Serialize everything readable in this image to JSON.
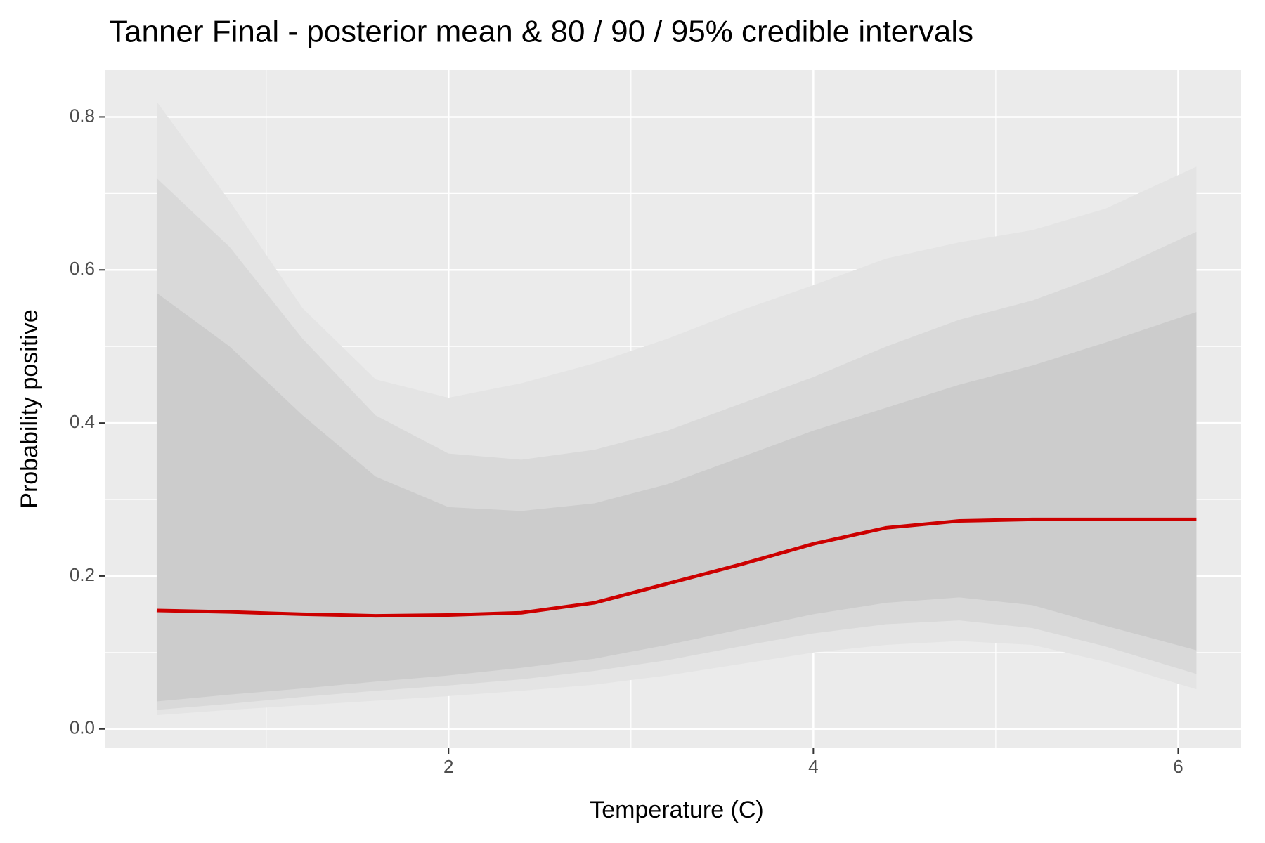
{
  "chart_data": {
    "type": "line",
    "title": "Tanner Final - posterior mean & 80 / 90 / 95% credible intervals",
    "x_label": "Temperature (C)",
    "y_label": "Probability positive",
    "x": [
      0.4,
      0.8,
      1.2,
      1.6,
      2.0,
      2.4,
      2.8,
      3.2,
      3.6,
      4.0,
      4.4,
      4.8,
      5.2,
      5.6,
      6.1
    ],
    "bands": [
      {
        "color": "#e4e4e4",
        "lower": [
          0.018,
          0.025,
          0.031,
          0.037,
          0.043,
          0.05,
          0.058,
          0.07,
          0.085,
          0.1,
          0.11,
          0.115,
          0.11,
          0.088,
          0.052
        ],
        "upper": [
          0.82,
          0.69,
          0.55,
          0.457,
          0.433,
          0.452,
          0.478,
          0.51,
          0.547,
          0.58,
          0.615,
          0.636,
          0.652,
          0.68,
          0.735
        ]
      },
      {
        "color": "#d9d9d9",
        "lower": [
          0.025,
          0.033,
          0.042,
          0.05,
          0.057,
          0.065,
          0.076,
          0.09,
          0.108,
          0.125,
          0.137,
          0.142,
          0.132,
          0.108,
          0.072
        ],
        "upper": [
          0.72,
          0.63,
          0.51,
          0.41,
          0.36,
          0.352,
          0.365,
          0.39,
          0.425,
          0.46,
          0.5,
          0.535,
          0.56,
          0.595,
          0.65
        ]
      },
      {
        "color": "#cccccc",
        "lower": [
          0.036,
          0.045,
          0.053,
          0.062,
          0.07,
          0.08,
          0.092,
          0.11,
          0.13,
          0.15,
          0.165,
          0.172,
          0.162,
          0.135,
          0.103
        ],
        "upper": [
          0.57,
          0.5,
          0.41,
          0.33,
          0.29,
          0.285,
          0.295,
          0.32,
          0.355,
          0.39,
          0.42,
          0.45,
          0.475,
          0.505,
          0.545
        ]
      }
    ],
    "series": [
      {
        "color": "#cc0000",
        "values": [
          0.155,
          0.153,
          0.15,
          0.148,
          0.149,
          0.152,
          0.165,
          0.19,
          0.215,
          0.242,
          0.263,
          0.272,
          0.274,
          0.274,
          0.274
        ]
      }
    ],
    "xlim": [
      0.115,
      6.345
    ],
    "ylim": [
      -0.025,
      0.861
    ],
    "xticks": [
      2,
      4,
      6
    ],
    "yticks": [
      {
        "value": 0,
        "label": "0.0"
      },
      0.2,
      0.4,
      0.6,
      0.8
    ],
    "x_minor_grid": [
      1,
      3,
      5
    ],
    "y_minor_grid": [
      0.1,
      0.3,
      0.5,
      0.7
    ],
    "grid": true
  }
}
